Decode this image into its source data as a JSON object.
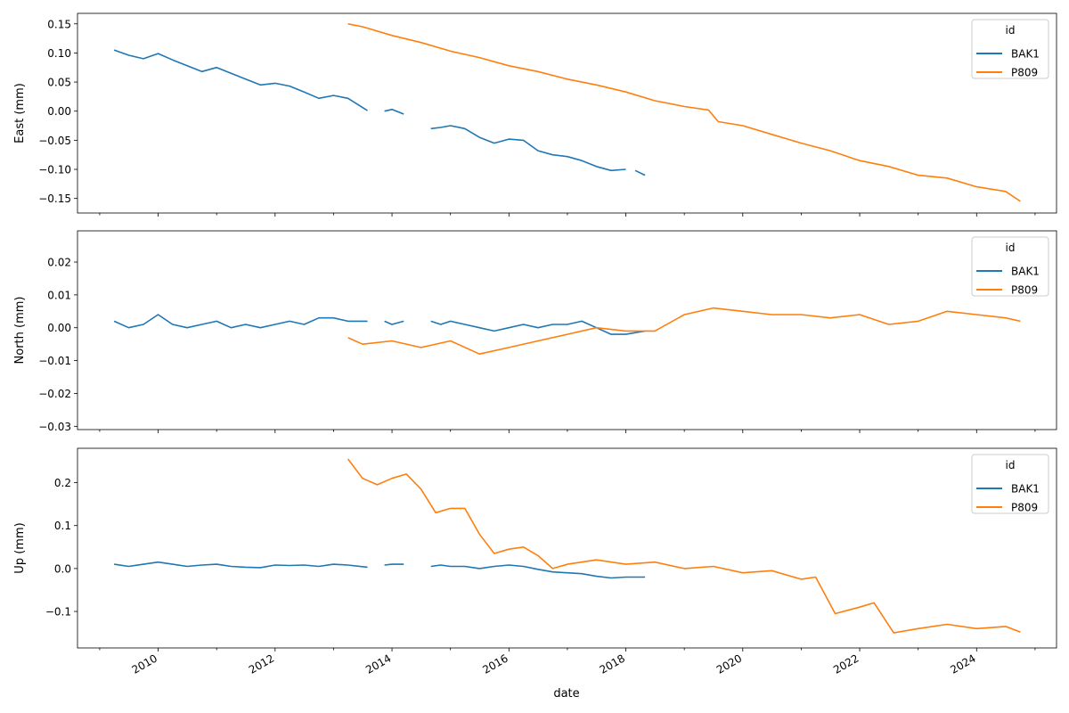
{
  "x_label": "date",
  "x_tick_labels": [
    "2010",
    "2012",
    "2014",
    "2016",
    "2018",
    "2020",
    "2022",
    "2024"
  ],
  "legend_title": "id",
  "series_styles": [
    {
      "name": "BAK1",
      "color": "#1f77b4"
    },
    {
      "name": "P809",
      "color": "#ff7f0e"
    }
  ],
  "chart_data": [
    {
      "type": "line",
      "ylabel": "East (mm)",
      "xlabel": "",
      "legend": "top-right",
      "grid": false,
      "xlim": [
        "2008-08-15",
        "2025-05-15"
      ],
      "ylim": [
        -0.175,
        0.168
      ],
      "y_ticks": [
        "0.15",
        "0.10",
        "0.05",
        "0.00",
        "−0.05",
        "−0.10",
        "−0.15"
      ],
      "series": [
        {
          "name": "BAK1",
          "segments": [
            {
              "x": [
                "2009-04-01",
                "2009-07-01",
                "2009-10-01",
                "2010-01-01",
                "2010-04-01",
                "2010-07-01",
                "2010-10-01",
                "2011-01-01",
                "2011-04-01",
                "2011-07-01",
                "2011-10-01",
                "2012-01-01",
                "2012-04-01",
                "2012-07-01",
                "2012-10-01",
                "2013-01-01",
                "2013-04-01",
                "2013-08-01"
              ],
              "y": [
                0.105,
                0.096,
                0.09,
                0.099,
                0.088,
                0.078,
                0.068,
                0.075,
                0.065,
                0.055,
                0.045,
                0.048,
                0.043,
                0.033,
                0.022,
                0.027,
                0.022,
                0.001
              ]
            },
            {
              "x": [
                "2013-11-15",
                "2014-01-01",
                "2014-03-15"
              ],
              "y": [
                0.0,
                0.003,
                -0.005
              ]
            },
            {
              "x": [
                "2014-09-01",
                "2014-11-01",
                "2015-01-01",
                "2015-04-01",
                "2015-07-01",
                "2015-10-01",
                "2016-01-01",
                "2016-04-01",
                "2016-07-01",
                "2016-10-01",
                "2017-01-01",
                "2017-04-01",
                "2017-07-01",
                "2017-10-01",
                "2018-01-01"
              ],
              "y": [
                -0.03,
                -0.028,
                -0.025,
                -0.03,
                -0.045,
                -0.055,
                -0.048,
                -0.05,
                -0.068,
                -0.075,
                -0.078,
                -0.085,
                -0.095,
                -0.102,
                -0.1
              ]
            },
            {
              "x": [
                "2018-03-01",
                "2018-05-01"
              ],
              "y": [
                -0.102,
                -0.11
              ]
            }
          ]
        },
        {
          "name": "P809",
          "segments": [
            {
              "x": [
                "2013-04-01",
                "2013-07-01",
                "2014-01-01",
                "2014-07-01",
                "2015-01-01",
                "2015-07-01",
                "2016-01-01",
                "2016-07-01",
                "2017-01-01",
                "2017-07-01",
                "2018-01-01",
                "2018-07-01",
                "2019-01-01",
                "2019-06-01",
                "2019-08-01",
                "2020-01-01",
                "2020-07-01",
                "2021-01-01",
                "2021-07-01",
                "2022-01-01",
                "2022-07-01",
                "2023-01-01",
                "2023-07-01",
                "2024-01-01",
                "2024-07-01",
                "2024-10-01"
              ],
              "y": [
                0.15,
                0.145,
                0.13,
                0.118,
                0.103,
                0.092,
                0.078,
                0.068,
                0.055,
                0.045,
                0.033,
                0.018,
                0.008,
                0.002,
                -0.018,
                -0.025,
                -0.04,
                -0.055,
                -0.068,
                -0.085,
                -0.095,
                -0.11,
                -0.115,
                -0.13,
                -0.138,
                -0.155
              ]
            }
          ]
        }
      ]
    },
    {
      "type": "line",
      "ylabel": "North (mm)",
      "xlabel": "",
      "legend": "top-right",
      "grid": false,
      "xlim": [
        "2008-08-15",
        "2025-05-15"
      ],
      "ylim": [
        -0.031,
        0.0295
      ],
      "y_ticks": [
        "0.02",
        "0.01",
        "0.00",
        "−0.01",
        "−0.02",
        "−0.03"
      ],
      "series": [
        {
          "name": "BAK1",
          "segments": [
            {
              "x": [
                "2009-04-01",
                "2009-07-01",
                "2009-10-01",
                "2010-01-01",
                "2010-04-01",
                "2010-07-01",
                "2010-10-01",
                "2011-01-01",
                "2011-04-01",
                "2011-07-01",
                "2011-10-01",
                "2012-01-01",
                "2012-04-01",
                "2012-07-01",
                "2012-10-01",
                "2013-01-01",
                "2013-04-01",
                "2013-08-01"
              ],
              "y": [
                0.002,
                0.0,
                0.001,
                0.004,
                0.001,
                0.0,
                0.001,
                0.002,
                0.0,
                0.001,
                0.0,
                0.001,
                0.002,
                0.001,
                0.003,
                0.003,
                0.002,
                0.002
              ]
            },
            {
              "x": [
                "2013-11-15",
                "2014-01-01",
                "2014-03-15"
              ],
              "y": [
                0.002,
                0.001,
                0.002
              ]
            },
            {
              "x": [
                "2014-09-01",
                "2014-11-01",
                "2015-01-01",
                "2015-04-01",
                "2015-07-01",
                "2015-10-01",
                "2016-01-01",
                "2016-04-01",
                "2016-07-01",
                "2016-10-01",
                "2017-01-01",
                "2017-04-01",
                "2017-07-01",
                "2017-10-01",
                "2018-01-01",
                "2018-05-01"
              ],
              "y": [
                0.002,
                0.001,
                0.002,
                0.001,
                0.0,
                -0.001,
                0.0,
                0.001,
                0.0,
                0.001,
                0.001,
                0.002,
                0.0,
                -0.002,
                -0.002,
                -0.001
              ]
            }
          ]
        },
        {
          "name": "P809",
          "segments": [
            {
              "x": [
                "2013-04-01",
                "2013-07-01",
                "2014-01-01",
                "2014-07-01",
                "2015-01-01",
                "2015-07-01",
                "2016-01-01",
                "2016-07-01",
                "2017-01-01",
                "2017-07-01",
                "2018-01-01",
                "2018-07-01",
                "2019-01-01",
                "2019-07-01",
                "2020-01-01",
                "2020-07-01",
                "2021-01-01",
                "2021-07-01",
                "2022-01-01",
                "2022-07-01",
                "2023-01-01",
                "2023-07-01",
                "2024-01-01",
                "2024-07-01",
                "2024-10-01"
              ],
              "y": [
                -0.003,
                -0.005,
                -0.004,
                -0.006,
                -0.004,
                -0.008,
                -0.006,
                -0.004,
                -0.002,
                0.0,
                -0.001,
                -0.001,
                0.004,
                0.006,
                0.005,
                0.004,
                0.004,
                0.003,
                0.004,
                0.001,
                0.002,
                0.005,
                0.004,
                0.003,
                0.002
              ]
            }
          ]
        }
      ]
    },
    {
      "type": "line",
      "ylabel": "Up (mm)",
      "xlabel": "date",
      "legend": "top-right",
      "grid": false,
      "xlim": [
        "2008-08-15",
        "2025-05-15"
      ],
      "ylim": [
        -0.185,
        0.28
      ],
      "y_ticks": [
        "0.2",
        "0.1",
        "0.0",
        "−0.1"
      ],
      "series": [
        {
          "name": "BAK1",
          "segments": [
            {
              "x": [
                "2009-04-01",
                "2009-07-01",
                "2009-10-01",
                "2010-01-01",
                "2010-04-01",
                "2010-07-01",
                "2010-10-01",
                "2011-01-01",
                "2011-04-01",
                "2011-07-01",
                "2011-10-01",
                "2012-01-01",
                "2012-04-01",
                "2012-07-01",
                "2012-10-01",
                "2013-01-01",
                "2013-04-01",
                "2013-08-01"
              ],
              "y": [
                0.01,
                0.005,
                0.01,
                0.015,
                0.01,
                0.005,
                0.008,
                0.01,
                0.005,
                0.003,
                0.002,
                0.008,
                0.007,
                0.008,
                0.005,
                0.01,
                0.008,
                0.003
              ]
            },
            {
              "x": [
                "2013-11-15",
                "2014-01-01",
                "2014-03-15"
              ],
              "y": [
                0.008,
                0.01,
                0.01
              ]
            },
            {
              "x": [
                "2014-09-01",
                "2014-11-01",
                "2015-01-01",
                "2015-04-01",
                "2015-07-01",
                "2015-10-01",
                "2016-01-01",
                "2016-04-01",
                "2016-07-01",
                "2016-10-01",
                "2017-01-01",
                "2017-04-01",
                "2017-07-01",
                "2017-10-01",
                "2018-01-01",
                "2018-05-01"
              ],
              "y": [
                0.005,
                0.008,
                0.005,
                0.005,
                0.0,
                0.005,
                0.008,
                0.005,
                -0.002,
                -0.008,
                -0.01,
                -0.012,
                -0.018,
                -0.022,
                -0.02,
                -0.02
              ]
            }
          ]
        },
        {
          "name": "P809",
          "segments": [
            {
              "x": [
                "2013-04-01",
                "2013-07-01",
                "2013-10-01",
                "2014-01-01",
                "2014-04-01",
                "2014-07-01",
                "2014-10-01",
                "2015-01-01",
                "2015-04-01",
                "2015-07-01",
                "2015-10-01",
                "2016-01-01",
                "2016-04-01",
                "2016-07-01",
                "2016-10-01",
                "2017-01-01",
                "2017-07-01",
                "2018-01-01",
                "2018-07-01",
                "2019-01-01",
                "2019-07-01",
                "2020-01-01",
                "2020-07-01",
                "2021-01-01",
                "2021-04-01",
                "2021-08-01",
                "2022-01-01",
                "2022-04-01",
                "2022-08-01",
                "2023-01-01",
                "2023-07-01",
                "2024-01-01",
                "2024-07-01",
                "2024-10-01"
              ],
              "y": [
                0.255,
                0.21,
                0.195,
                0.21,
                0.22,
                0.185,
                0.13,
                0.14,
                0.14,
                0.08,
                0.035,
                0.045,
                0.05,
                0.03,
                0.0,
                0.01,
                0.02,
                0.01,
                0.015,
                0.0,
                0.005,
                -0.01,
                -0.005,
                -0.025,
                -0.02,
                -0.105,
                -0.09,
                -0.08,
                -0.15,
                -0.14,
                -0.13,
                -0.14,
                -0.135,
                -0.148
              ]
            }
          ]
        }
      ]
    }
  ]
}
